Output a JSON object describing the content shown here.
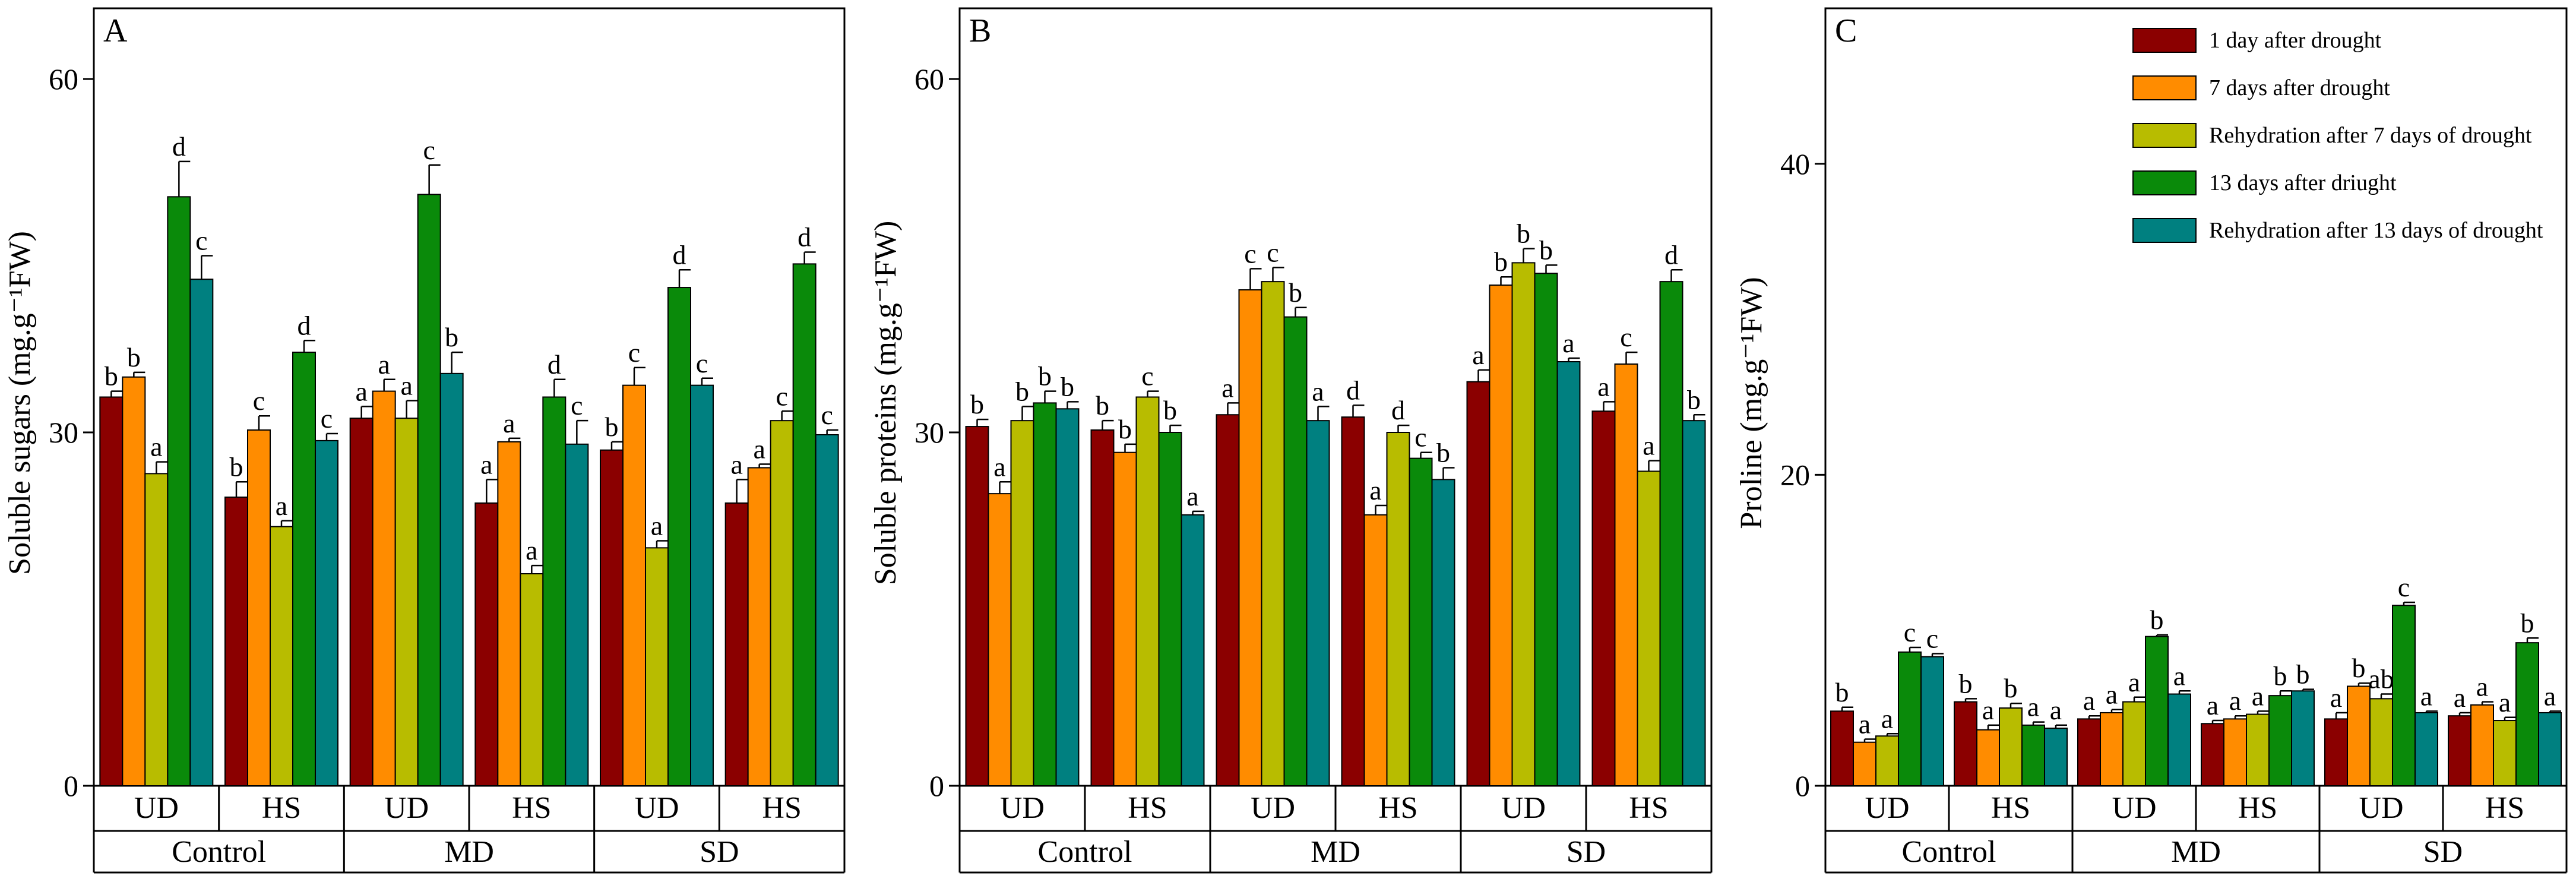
{
  "chart_data": [
    {
      "type": "bar",
      "panel": "A",
      "ylabel": "Soluble sugars (mg.g⁻¹FW)",
      "ylim": [
        0,
        66
      ],
      "yticks": [
        0,
        30,
        60
      ],
      "treatment_groups": [
        "Control",
        "MD",
        "SD"
      ],
      "sub_groups": [
        "UD",
        "HS",
        "UD",
        "HS",
        "UD",
        "HS"
      ],
      "series": [
        {
          "name": "1 day after drought",
          "values": [
            33.0,
            24.5,
            31.2,
            24.0,
            28.5,
            24.0
          ],
          "errors": [
            0.5,
            1.3,
            1.0,
            2.0,
            0.7,
            2.0
          ],
          "letters": [
            "b",
            "b",
            "a",
            "a",
            "b",
            "a"
          ]
        },
        {
          "name": "7 days after drought",
          "values": [
            34.7,
            30.2,
            33.5,
            29.2,
            34.0,
            27.0
          ],
          "errors": [
            0.4,
            1.2,
            1.0,
            0.3,
            1.5,
            0.3
          ],
          "letters": [
            "b",
            "c",
            "a",
            "a",
            "c",
            "a"
          ]
        },
        {
          "name": "Rehydration after 7 days of drought",
          "values": [
            26.5,
            22.0,
            31.2,
            18.0,
            20.2,
            31.0
          ],
          "errors": [
            1.0,
            0.5,
            1.5,
            0.7,
            0.6,
            0.8
          ],
          "letters": [
            "a",
            "a",
            "a",
            "a",
            "a",
            "c"
          ]
        },
        {
          "name": "13 days after driught",
          "values": [
            50.0,
            36.8,
            50.2,
            33.0,
            42.3,
            44.3
          ],
          "errors": [
            3.0,
            1.0,
            2.5,
            1.5,
            1.5,
            1.0
          ],
          "letters": [
            "d",
            "d",
            "c",
            "d",
            "d",
            "d"
          ]
        },
        {
          "name": "Rehydration after 13 days of drought",
          "values": [
            43.0,
            29.3,
            35.0,
            29.0,
            34.0,
            29.8
          ],
          "errors": [
            2.0,
            0.6,
            1.8,
            2.0,
            0.6,
            0.4
          ],
          "letters": [
            "c",
            "c",
            "b",
            "c",
            "c",
            "c"
          ]
        }
      ]
    },
    {
      "type": "bar",
      "panel": "B",
      "ylabel": "Soluble proteins (mg.g⁻¹FW)",
      "ylim": [
        0,
        66
      ],
      "yticks": [
        0,
        30,
        60
      ],
      "treatment_groups": [
        "Control",
        "MD",
        "SD"
      ],
      "sub_groups": [
        "UD",
        "HS",
        "UD",
        "HS",
        "UD",
        "HS"
      ],
      "series": [
        {
          "name": "1 day after drought",
          "values": [
            30.5,
            30.2,
            31.5,
            31.3,
            34.3,
            31.8
          ],
          "errors": [
            0.6,
            0.8,
            1.0,
            1.0,
            1.0,
            0.8
          ],
          "letters": [
            "b",
            "b",
            "a",
            "d",
            "a",
            "a"
          ]
        },
        {
          "name": "7 days after drought",
          "values": [
            24.8,
            28.3,
            42.1,
            23.0,
            42.5,
            35.8
          ],
          "errors": [
            1.0,
            0.7,
            1.8,
            0.8,
            0.7,
            1.0
          ],
          "letters": [
            "a",
            "b",
            "c",
            "a",
            "b",
            "c"
          ]
        },
        {
          "name": "Rehydration after 7 days of drought",
          "values": [
            31.0,
            33.0,
            42.8,
            30.0,
            44.4,
            26.7
          ],
          "errors": [
            1.2,
            0.5,
            1.2,
            0.6,
            1.2,
            0.9
          ],
          "letters": [
            "b",
            "c",
            "c",
            "d",
            "b",
            "a"
          ]
        },
        {
          "name": "13 days after driught",
          "values": [
            32.5,
            30.0,
            39.8,
            27.8,
            43.5,
            42.8
          ],
          "errors": [
            1.0,
            0.6,
            0.8,
            0.5,
            0.7,
            1.0
          ],
          "letters": [
            "b",
            "b",
            "b",
            "c",
            "b",
            "d"
          ]
        },
        {
          "name": "Rehydration after 13 days of drought",
          "values": [
            32.0,
            23.0,
            31.0,
            26.0,
            36.0,
            31.0
          ],
          "errors": [
            0.6,
            0.3,
            1.2,
            1.0,
            0.3,
            0.5
          ],
          "letters": [
            "b",
            "a",
            "a",
            "b",
            "a",
            "b"
          ]
        }
      ]
    },
    {
      "type": "bar",
      "panel": "C",
      "ylabel": "Proline (mg.g⁻¹FW)",
      "ylim": [
        0,
        50
      ],
      "yticks": [
        0,
        20,
        40
      ],
      "treatment_groups": [
        "Control",
        "MD",
        "SD"
      ],
      "sub_groups": [
        "UD",
        "HS",
        "UD",
        "HS",
        "UD",
        "HS"
      ],
      "series": [
        {
          "name": "1 day after drought",
          "values": [
            4.8,
            5.4,
            4.3,
            4.0,
            4.3,
            4.5
          ],
          "errors": [
            0.25,
            0.2,
            0.2,
            0.2,
            0.4,
            0.2
          ],
          "letters": [
            "b",
            "b",
            "a",
            "a",
            "a",
            "a"
          ]
        },
        {
          "name": "7 days after drought",
          "values": [
            2.8,
            3.6,
            4.7,
            4.3,
            6.4,
            5.2
          ],
          "errors": [
            0.2,
            0.3,
            0.2,
            0.2,
            0.2,
            0.2
          ],
          "letters": [
            "a",
            "a",
            "a",
            "a",
            "b",
            "a"
          ]
        },
        {
          "name": "Rehydration after 7 days of drought",
          "values": [
            3.2,
            5.0,
            5.4,
            4.6,
            5.6,
            4.2
          ],
          "errors": [
            0.15,
            0.3,
            0.3,
            0.2,
            0.3,
            0.2
          ],
          "letters": [
            "a",
            "b",
            "a",
            "a",
            "ab",
            "a"
          ]
        },
        {
          "name": "13 days after driught",
          "values": [
            8.6,
            3.9,
            9.6,
            5.8,
            11.6,
            9.2
          ],
          "errors": [
            0.3,
            0.2,
            0.1,
            0.3,
            0.2,
            0.3
          ],
          "letters": [
            "c",
            "a",
            "b",
            "b",
            "c",
            "b"
          ]
        },
        {
          "name": "Rehydration after 13 days of drought",
          "values": [
            8.3,
            3.7,
            5.9,
            6.1,
            4.7,
            4.7
          ],
          "errors": [
            0.2,
            0.2,
            0.2,
            0.1,
            0.1,
            0.1
          ],
          "letters": [
            "c",
            "a",
            "a",
            "b",
            "a",
            "a"
          ]
        }
      ]
    }
  ],
  "colors": [
    "#8b0000",
    "#ff8c00",
    "#b8bc00",
    "#0a8a0a",
    "#008080"
  ],
  "error_bar_color": "#000000"
}
